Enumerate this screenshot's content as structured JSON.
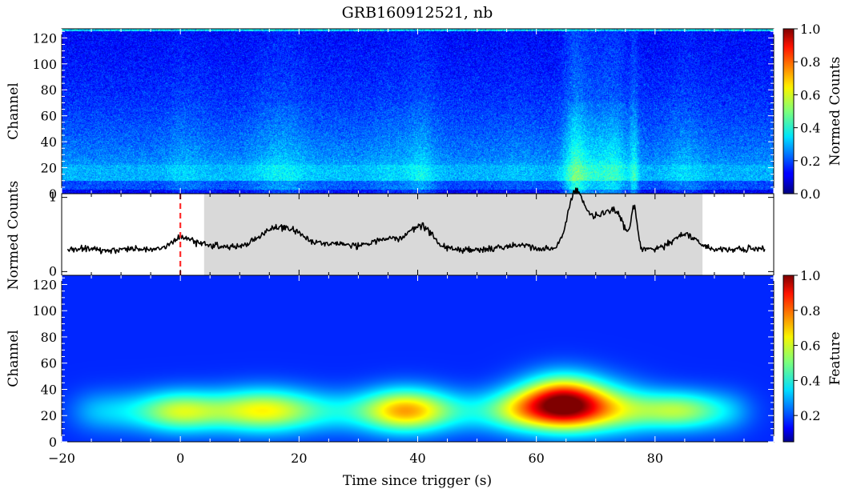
{
  "figure": {
    "title": "GRB160912521, nb"
  },
  "chart_data": [
    {
      "type": "heatmap",
      "name": "spectrogram",
      "ylabel": "Channel",
      "y_ticks": [
        "0",
        "20",
        "40",
        "60",
        "80",
        "100",
        "120"
      ],
      "y_tick_values": [
        0,
        20,
        40,
        60,
        80,
        100,
        120
      ],
      "ylim": [
        0,
        127
      ],
      "xlim": [
        -20,
        100
      ],
      "colormap": "jet",
      "colorbar": {
        "label": "Normed Counts",
        "ticks": [
          "0.0",
          "0.2",
          "0.4",
          "0.6",
          "0.8",
          "1.0"
        ],
        "tick_values": [
          0.0,
          0.2,
          0.4,
          0.6,
          0.8,
          1.0
        ],
        "range": [
          0,
          1
        ]
      }
    },
    {
      "type": "line",
      "name": "light-curve",
      "ylabel": "Normed Counts",
      "y_ticks": [
        "0",
        "1"
      ],
      "y_tick_values": [
        0,
        1
      ],
      "ylim": [
        -0.05,
        1.05
      ],
      "xlim": [
        -20,
        100
      ],
      "trigger_time": 0,
      "trigger_color": "#ff2a2a",
      "shaded_interval": [
        4,
        88
      ],
      "shade_color": "#d9d9d9",
      "line_color": "#000000",
      "baseline": 0.3,
      "pulses": [
        {
          "t": 0,
          "amp": 0.12,
          "width": 1.5
        },
        {
          "t": 3,
          "amp": 0.08,
          "width": 2.5
        },
        {
          "t": 17,
          "amp": 0.3,
          "width": 3.5
        },
        {
          "t": 27,
          "amp": 0.06,
          "width": 2.5
        },
        {
          "t": 35,
          "amp": 0.15,
          "width": 2.5
        },
        {
          "t": 40.5,
          "amp": 0.32,
          "width": 1.8
        },
        {
          "t": 57,
          "amp": 0.06,
          "width": 2.0
        },
        {
          "t": 66.5,
          "amp": 0.62,
          "width": 1.3
        },
        {
          "t": 70,
          "amp": 0.42,
          "width": 2.5
        },
        {
          "t": 73.5,
          "amp": 0.35,
          "width": 1.5
        },
        {
          "t": 76.5,
          "amp": 0.5,
          "width": 0.5
        },
        {
          "t": 85,
          "amp": 0.2,
          "width": 2.0
        }
      ]
    },
    {
      "type": "heatmap",
      "name": "feature-map",
      "ylabel": "Channel",
      "xlabel": "Time since trigger (s)",
      "y_ticks": [
        "0",
        "20",
        "40",
        "60",
        "80",
        "100",
        "120"
      ],
      "y_tick_values": [
        0,
        20,
        40,
        60,
        80,
        100,
        120
      ],
      "x_ticks": [
        "−20",
        "0",
        "20",
        "40",
        "60",
        "80"
      ],
      "x_tick_values": [
        -20,
        0,
        20,
        40,
        60,
        80
      ],
      "ylim": [
        0,
        127
      ],
      "xlim": [
        -20,
        100
      ],
      "colormap": "jet",
      "colorbar": {
        "label": "Feature",
        "ticks": [
          "0.2",
          "0.4",
          "0.6",
          "0.8",
          "1.0"
        ],
        "tick_values": [
          0.2,
          0.4,
          0.6,
          0.8,
          1.0
        ],
        "range": [
          0.05,
          1
        ]
      },
      "blobs": [
        {
          "t": 0,
          "ch": 23,
          "amp": 0.26,
          "st": 4.5,
          "sc": 11
        },
        {
          "t": 14,
          "ch": 24,
          "amp": 0.32,
          "st": 6.0,
          "sc": 12
        },
        {
          "t": 38,
          "ch": 24,
          "amp": 0.42,
          "st": 5.0,
          "sc": 12
        },
        {
          "t": 57,
          "ch": 25,
          "amp": 0.2,
          "st": 4.0,
          "sc": 12
        },
        {
          "t": 64.5,
          "ch": 30,
          "amp": 0.78,
          "st": 4.8,
          "sc": 14
        },
        {
          "t": 73,
          "ch": 26,
          "amp": 0.22,
          "st": 5.0,
          "sc": 14
        },
        {
          "t": 84,
          "ch": 24,
          "amp": 0.22,
          "st": 4.5,
          "sc": 10
        }
      ]
    }
  ]
}
